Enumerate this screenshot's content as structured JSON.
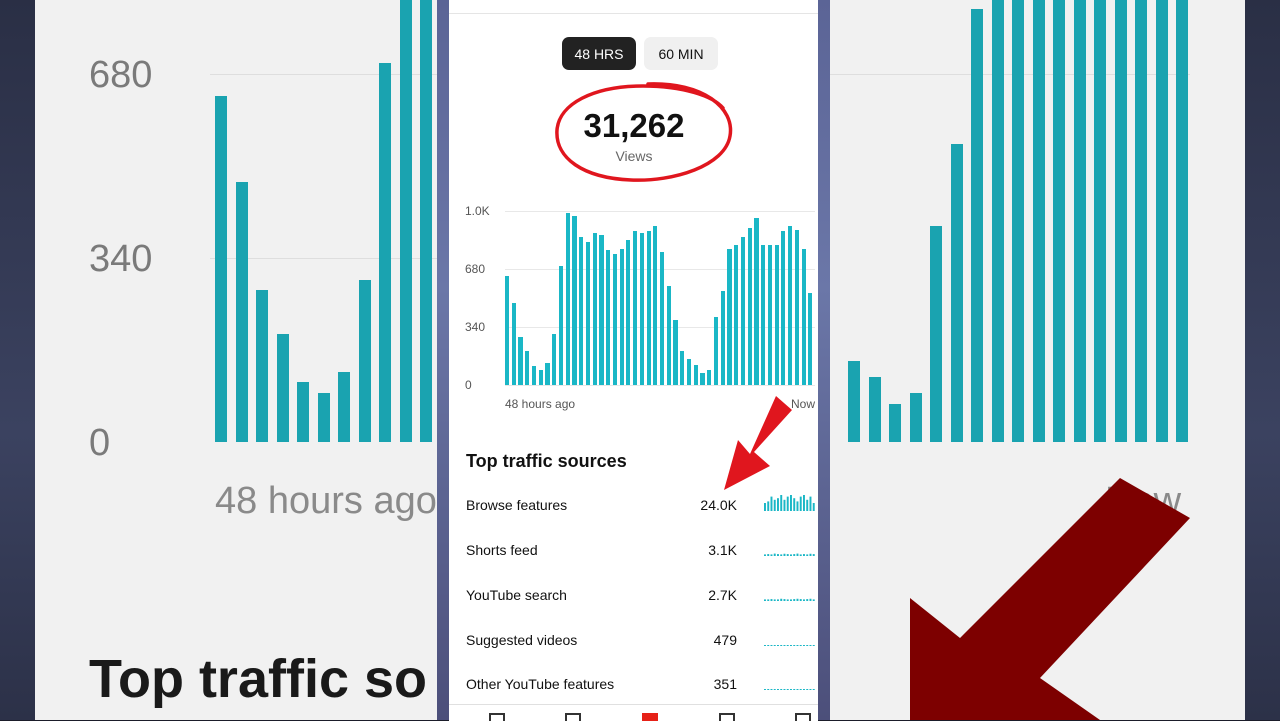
{
  "background": {
    "ticks": [
      "680",
      "340",
      "0"
    ],
    "x_start": "48 hours ago",
    "x_end": "Now",
    "section_title": "Top traffic so"
  },
  "tabs": [
    {
      "label": "48 HRS",
      "active": true
    },
    {
      "label": "60 MIN",
      "active": false
    }
  ],
  "views": {
    "value": "31,262",
    "label": "Views"
  },
  "chart_data": {
    "type": "bar",
    "y_ticks": [
      "1.0K",
      "680",
      "340",
      "0"
    ],
    "ylim": [
      0,
      1020
    ],
    "x_start_label": "48 hours ago",
    "x_end_label": "Now",
    "values": [
      640,
      480,
      280,
      200,
      110,
      90,
      130,
      300,
      700,
      1010,
      990,
      870,
      840,
      890,
      880,
      790,
      770,
      800,
      850,
      900,
      890,
      900,
      930,
      780,
      580,
      380,
      200,
      150,
      120,
      70,
      90,
      400,
      550,
      800,
      820,
      870,
      920,
      980,
      820,
      820,
      820,
      900,
      930,
      910,
      800,
      540
    ],
    "color": "#1ab7c6"
  },
  "traffic": {
    "title": "Top traffic sources",
    "sources": [
      {
        "name": "Browse features",
        "value": "24.0K",
        "spark": [
          0.5,
          0.6,
          0.9,
          0.7,
          0.8,
          1,
          0.7,
          0.9,
          1,
          0.8,
          0.6,
          0.9,
          1,
          0.7,
          0.9,
          0.5
        ]
      },
      {
        "name": "Shorts feed",
        "value": "3.1K",
        "spark": [
          0.1,
          0.12,
          0.1,
          0.15,
          0.12,
          0.1,
          0.14,
          0.12,
          0.1,
          0.12,
          0.15,
          0.1,
          0.12,
          0.1,
          0.14,
          0.12
        ]
      },
      {
        "name": "YouTube search",
        "value": "2.7K",
        "spark": [
          0.1,
          0.1,
          0.12,
          0.1,
          0.1,
          0.14,
          0.12,
          0.1,
          0.1,
          0.12,
          0.14,
          0.12,
          0.1,
          0.12,
          0.14,
          0.1
        ]
      },
      {
        "name": "Suggested videos",
        "value": "479",
        "spark": [
          0.04,
          0.04,
          0.05,
          0.04,
          0.04,
          0.05,
          0.04,
          0.04,
          0.05,
          0.04,
          0.04,
          0.05,
          0.04,
          0.04,
          0.05,
          0.04
        ]
      },
      {
        "name": "Other YouTube features",
        "value": "351",
        "spark": [
          0.04,
          0.04,
          0.04,
          0.05,
          0.04,
          0.04,
          0.04,
          0.05,
          0.04,
          0.04,
          0.04,
          0.05,
          0.04,
          0.04,
          0.04,
          0.04
        ]
      }
    ]
  },
  "colors": {
    "accent": "#1ab7c6",
    "highlight": "#e0161e"
  }
}
